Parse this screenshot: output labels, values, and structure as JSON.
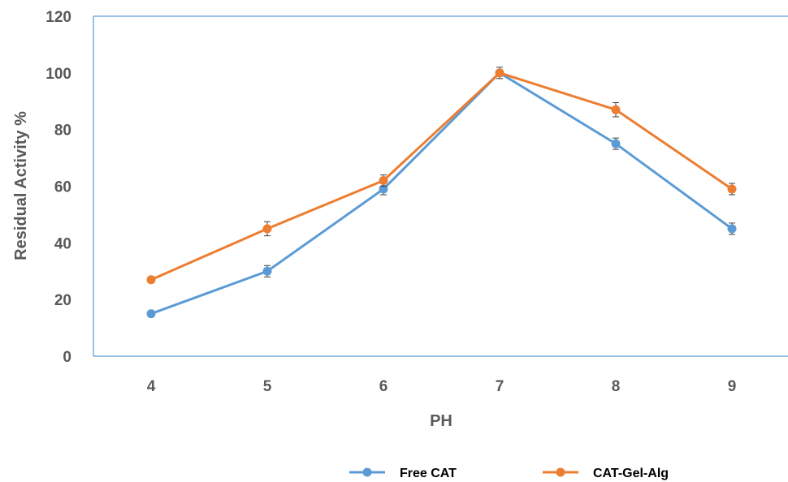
{
  "chart_data": {
    "type": "line",
    "title": "",
    "xlabel": "PH",
    "ylabel": "Residual Activity %",
    "categories": [
      "4",
      "5",
      "6",
      "7",
      "8",
      "9"
    ],
    "ylim": [
      0,
      120
    ],
    "yticks": [
      "0",
      "20",
      "40",
      "60",
      "80",
      "100",
      "120"
    ],
    "grid": false,
    "legend": "bottom",
    "series": [
      {
        "name": "Free CAT",
        "color": "#5B9BD5",
        "values": [
          15,
          30,
          59,
          100,
          75,
          45
        ],
        "errors": [
          1,
          2,
          2,
          1,
          2,
          2
        ]
      },
      {
        "name": "CAT-Gel-Alg",
        "color": "#ED7D31",
        "values": [
          27,
          45,
          62,
          100,
          87,
          59
        ],
        "errors": [
          1,
          2.5,
          2,
          2,
          2.5,
          2
        ]
      }
    ]
  }
}
